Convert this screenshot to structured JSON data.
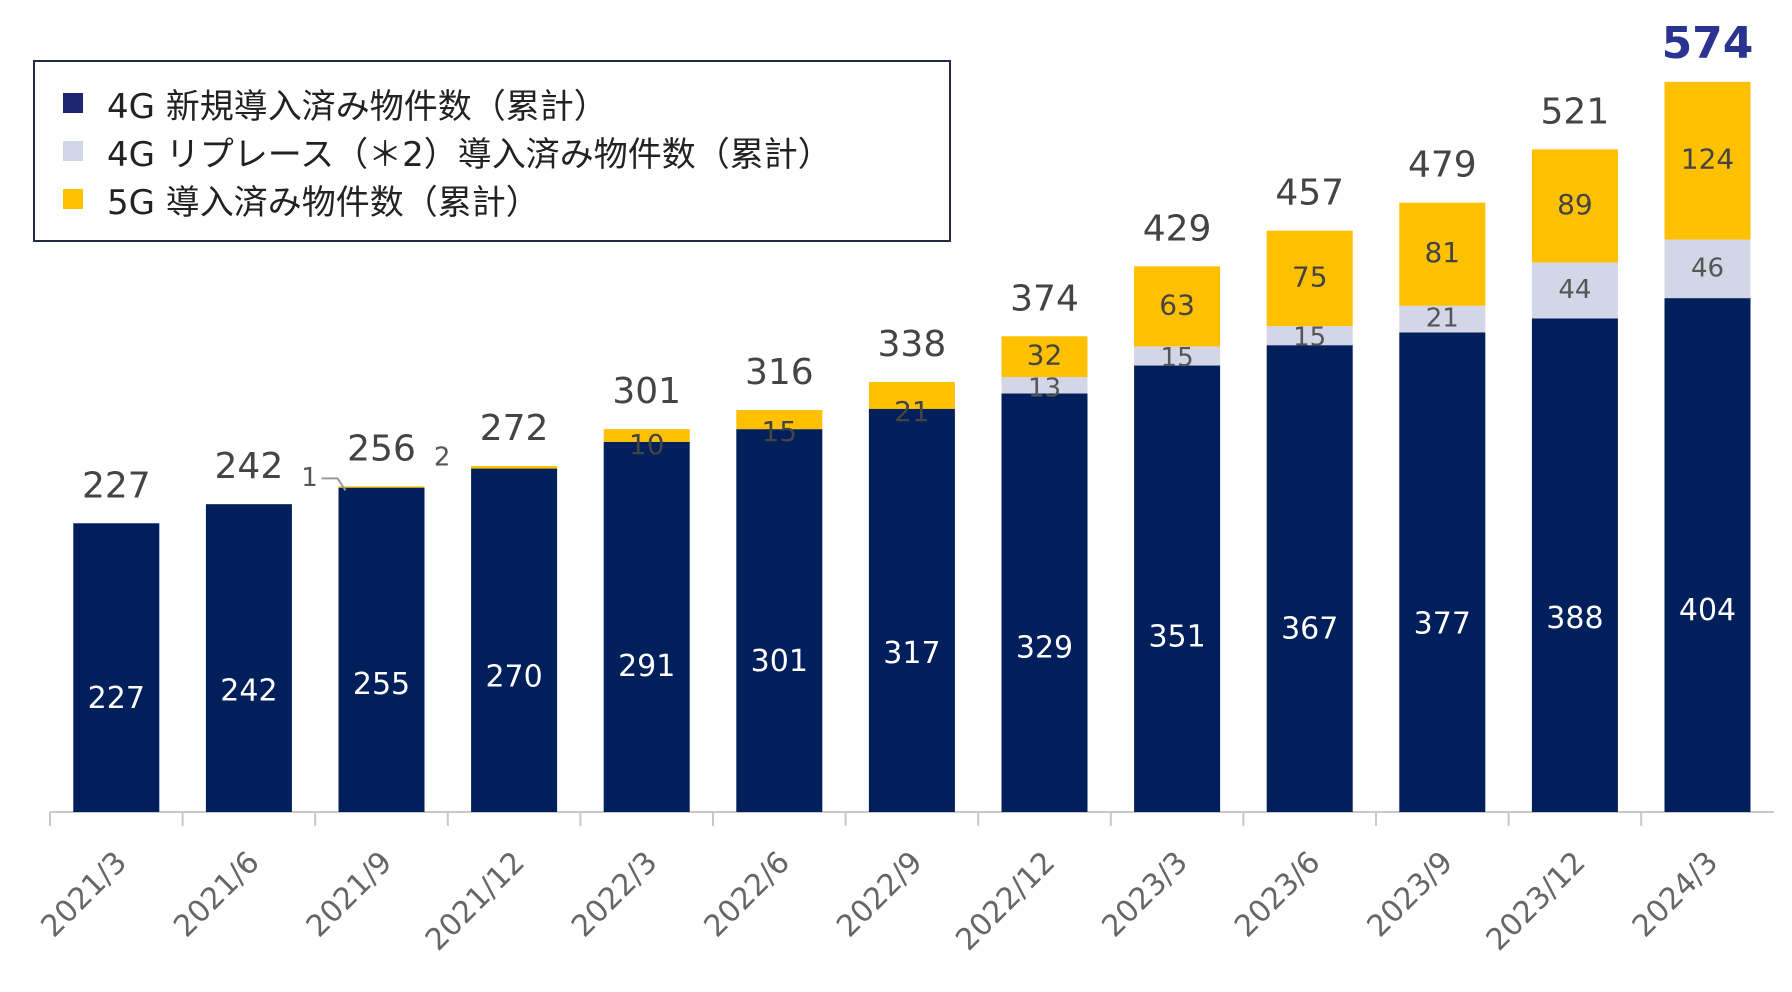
{
  "chart_data": {
    "type": "stacked-bar",
    "categories": [
      "2021/3",
      "2021/6",
      "2021/9",
      "2021/12",
      "2022/3",
      "2022/6",
      "2022/9",
      "2022/12",
      "2023/3",
      "2023/6",
      "2023/9",
      "2023/12",
      "2024/3"
    ],
    "series": [
      {
        "name": "4G 新規導入済み物件数（累計）",
        "color": "#001f5b",
        "values": [
          227,
          242,
          255,
          270,
          291,
          301,
          317,
          329,
          351,
          367,
          377,
          388,
          404
        ]
      },
      {
        "name": "4G リプレース（＊2）導入済み物件数（累計）",
        "color": "#d3d6e6",
        "values": [
          0,
          0,
          0,
          0,
          0,
          0,
          0,
          13,
          15,
          15,
          21,
          44,
          46
        ]
      },
      {
        "name": "5G 導入済み物件数（累計）",
        "color": "#ffc000",
        "values": [
          0,
          0,
          1,
          2,
          10,
          15,
          21,
          32,
          63,
          75,
          81,
          89,
          124
        ]
      }
    ],
    "totals": [
      227,
      242,
      256,
      272,
      301,
      316,
      338,
      374,
      429,
      457,
      479,
      521,
      574
    ],
    "highlight_total": {
      "index": 12,
      "color": "#2b3391"
    },
    "segment_labels": {
      "0": [
        "227",
        "242",
        "255",
        "270",
        "291",
        "301",
        "317",
        "329",
        "351",
        "367",
        "377",
        "388",
        "404"
      ],
      "1": [
        "",
        "",
        "",
        "",
        "",
        "",
        "",
        "13",
        "15",
        "15",
        "21",
        "44",
        "46"
      ],
      "2": [
        "",
        "",
        "",
        "",
        "10",
        "15",
        "21",
        "32",
        "63",
        "75",
        "81",
        "89",
        "124"
      ]
    },
    "callouts": [
      {
        "category_index": 2,
        "text": "1"
      },
      {
        "category_index": 3,
        "text": "2"
      }
    ],
    "ylim": [
      0,
      600
    ],
    "legend_position": "top-left",
    "legend_marker": "■"
  }
}
